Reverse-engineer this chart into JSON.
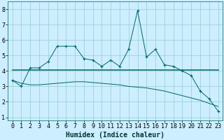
{
  "title": "",
  "xlabel": "Humidex (Indice chaleur)",
  "background_color": "#cceeff",
  "grid_color": "#99cccc",
  "line_color": "#006666",
  "xlim": [
    -0.5,
    23.5
  ],
  "ylim": [
    0.8,
    8.5
  ],
  "yticks": [
    1,
    2,
    3,
    4,
    5,
    6,
    7,
    8
  ],
  "xticks": [
    0,
    1,
    2,
    3,
    4,
    5,
    6,
    7,
    8,
    9,
    10,
    11,
    12,
    13,
    14,
    15,
    16,
    17,
    18,
    19,
    20,
    21,
    22,
    23
  ],
  "line1_x": [
    0,
    1,
    2,
    3,
    4,
    5,
    6,
    7,
    8,
    9,
    10,
    11,
    12,
    13,
    14,
    15,
    16,
    17,
    18,
    19,
    20,
    21,
    22,
    23
  ],
  "line1_y": [
    3.4,
    3.0,
    4.2,
    4.2,
    4.6,
    5.6,
    5.6,
    5.6,
    4.8,
    4.7,
    4.3,
    4.7,
    4.3,
    5.4,
    7.9,
    4.9,
    5.4,
    4.4,
    4.3,
    4.0,
    3.7,
    2.7,
    2.2,
    1.4
  ],
  "line2_x": [
    0,
    1,
    2,
    3,
    4,
    5,
    6,
    7,
    8,
    9,
    10,
    11,
    12,
    13,
    14,
    15,
    16,
    17,
    18,
    19,
    20,
    21,
    22,
    23
  ],
  "line2_y": [
    4.05,
    4.05,
    4.05,
    4.05,
    4.05,
    4.05,
    4.05,
    4.05,
    4.05,
    4.05,
    4.05,
    4.05,
    4.05,
    4.05,
    4.05,
    4.05,
    4.05,
    4.05,
    4.05,
    4.05,
    4.05,
    4.05,
    4.05,
    4.05
  ],
  "line3_x": [
    0,
    1,
    2,
    3,
    4,
    5,
    6,
    7,
    8,
    9,
    10,
    11,
    12,
    13,
    14,
    15,
    16,
    17,
    18,
    19,
    20,
    21,
    22,
    23
  ],
  "line3_y": [
    3.4,
    3.2,
    3.1,
    3.1,
    3.15,
    3.2,
    3.25,
    3.3,
    3.3,
    3.25,
    3.2,
    3.15,
    3.1,
    3.0,
    2.95,
    2.9,
    2.8,
    2.7,
    2.55,
    2.4,
    2.25,
    2.1,
    1.9,
    1.7
  ],
  "font_family": "monospace",
  "tick_fontsize": 6,
  "xlabel_fontsize": 7
}
